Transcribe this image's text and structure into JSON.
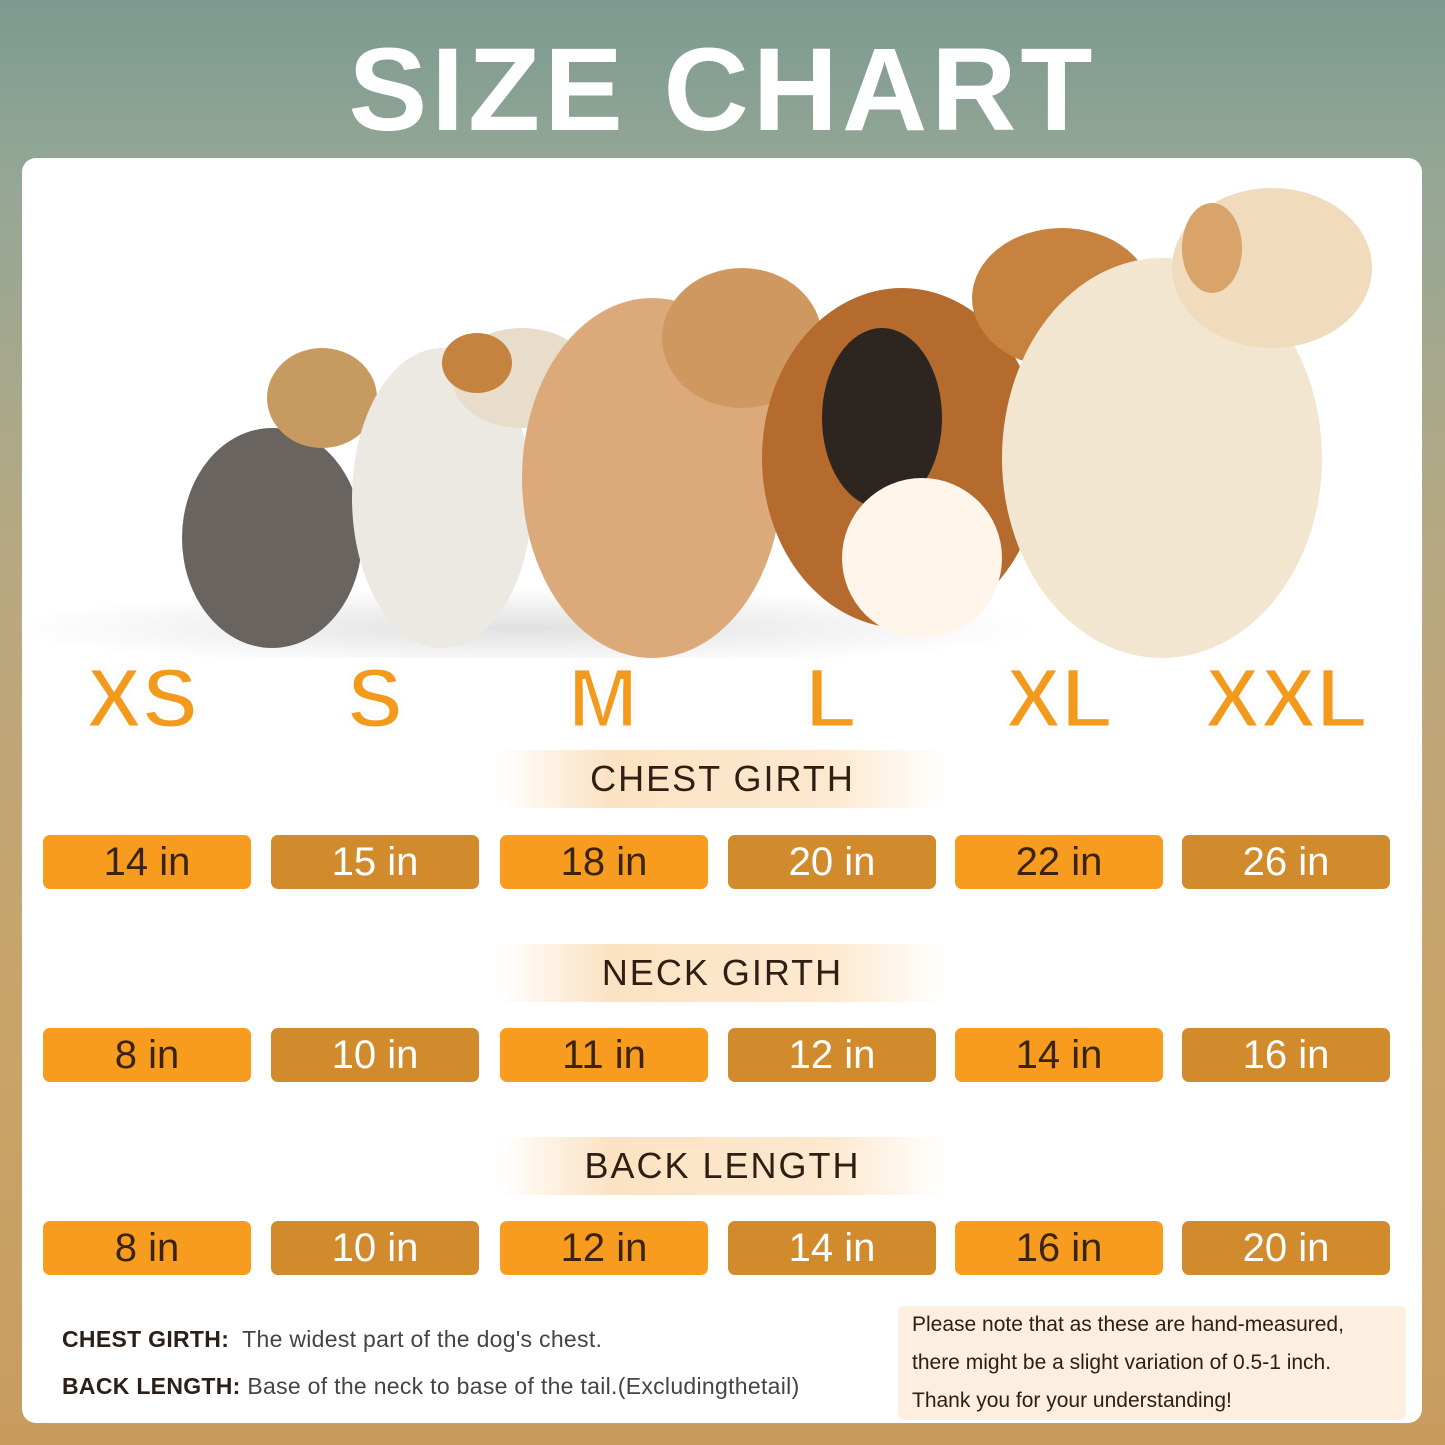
{
  "title": "SIZE CHART",
  "sizes": [
    "XS",
    "S",
    "M",
    "L",
    "XL",
    "XXL"
  ],
  "rows": [
    {
      "label": "CHEST GIRTH",
      "values": [
        "14 in",
        "15 in",
        "18 in",
        "20 in",
        "22 in",
        "26 in"
      ]
    },
    {
      "label": "NECK GIRTH",
      "values": [
        "8 in",
        "10 in",
        "11 in",
        "12 in",
        "14 in",
        "16 in"
      ]
    },
    {
      "label": "BACK LENGTH",
      "values": [
        "8 in",
        "10 in",
        "12 in",
        "14 in",
        "16 in",
        "20 in"
      ]
    }
  ],
  "definitions": [
    {
      "term": "CHEST GIRTH:",
      "text": "The widest part of the dog's chest."
    },
    {
      "term": "BACK LENGTH:",
      "text": "Base of the neck to base of the tail.(Excludingthetail)"
    }
  ],
  "note": [
    "Please note that as these are hand-measured,",
    "there might be a slight variation of 0.5-1 inch.",
    "Thank you for your understanding!"
  ],
  "colors": {
    "orange": "#f79c1f",
    "dark_orange": "#d18b2d",
    "size_label": "#f39a1c"
  },
  "image": "five dogs of increasing size sitting in profile"
}
